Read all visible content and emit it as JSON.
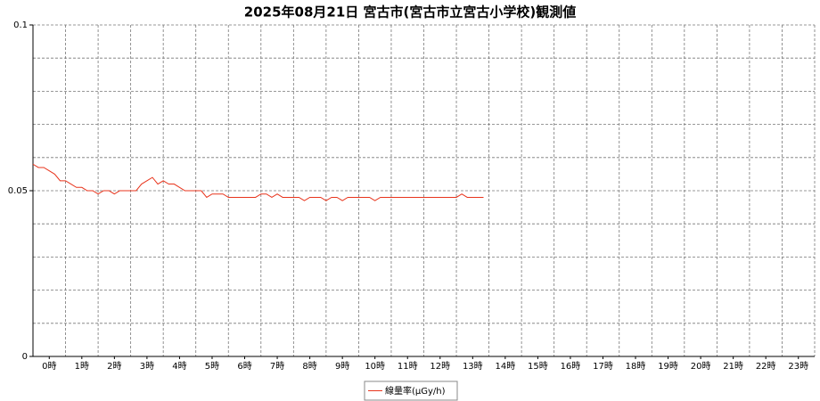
{
  "chart_data": {
    "type": "line",
    "title": "2025年08月21日 宮古市(宮古市立宮古小学校)観測値",
    "categories": [
      "0時",
      "1時",
      "2時",
      "3時",
      "4時",
      "5時",
      "6時",
      "7時",
      "8時",
      "9時",
      "10時",
      "11時",
      "12時",
      "13時",
      "14時",
      "15時",
      "16時",
      "17時",
      "18時",
      "19時",
      "20時",
      "21時",
      "22時",
      "23時"
    ],
    "x": [
      "00:00",
      "00:10",
      "00:20",
      "00:30",
      "00:40",
      "00:50",
      "01:00",
      "01:10",
      "01:20",
      "01:30",
      "01:40",
      "01:50",
      "02:00",
      "02:10",
      "02:20",
      "02:30",
      "02:40",
      "02:50",
      "03:00",
      "03:10",
      "03:20",
      "03:30",
      "03:40",
      "03:50",
      "04:00",
      "04:10",
      "04:20",
      "04:30",
      "04:40",
      "04:50",
      "05:00",
      "05:10",
      "05:20",
      "05:30",
      "05:40",
      "05:50",
      "06:00",
      "06:10",
      "06:20",
      "06:30",
      "06:40",
      "06:50",
      "07:00",
      "07:10",
      "07:20",
      "07:30",
      "07:40",
      "07:50",
      "08:00",
      "08:10",
      "08:20",
      "08:30",
      "08:40",
      "08:50",
      "09:00",
      "09:10",
      "09:20",
      "09:30",
      "09:40",
      "09:50",
      "10:00",
      "10:10",
      "10:20",
      "10:30",
      "10:40",
      "10:50",
      "11:00",
      "11:10",
      "11:20",
      "11:30",
      "11:40",
      "11:50",
      "12:00",
      "12:10",
      "12:20",
      "12:30",
      "12:40",
      "12:50",
      "13:00",
      "13:10",
      "13:20",
      "13:30",
      "13:40",
      "13:50"
    ],
    "series": [
      {
        "name": "線量率(μGy/h)",
        "color": "#e8341c",
        "values": [
          0.058,
          0.057,
          0.057,
          0.056,
          0.055,
          0.053,
          0.053,
          0.052,
          0.051,
          0.051,
          0.05,
          0.05,
          0.049,
          0.05,
          0.05,
          0.049,
          0.05,
          0.05,
          0.05,
          0.05,
          0.052,
          0.053,
          0.054,
          0.052,
          0.053,
          0.052,
          0.052,
          0.051,
          0.05,
          0.05,
          0.05,
          0.05,
          0.048,
          0.049,
          0.049,
          0.049,
          0.048,
          0.048,
          0.048,
          0.048,
          0.048,
          0.048,
          0.049,
          0.049,
          0.048,
          0.049,
          0.048,
          0.048,
          0.048,
          0.048,
          0.047,
          0.048,
          0.048,
          0.048,
          0.047,
          0.048,
          0.048,
          0.047,
          0.048,
          0.048,
          0.048,
          0.048,
          0.048,
          0.047,
          0.048,
          0.048,
          0.048,
          0.048,
          0.048,
          0.048,
          0.048,
          0.048,
          0.048,
          0.048,
          0.048,
          0.048,
          0.048,
          0.048,
          0.048,
          0.049,
          0.048,
          0.048,
          0.048,
          0.048
        ]
      }
    ],
    "ylim": [
      0,
      0.1
    ],
    "yticks": [
      0,
      0.05,
      0.1
    ],
    "ygrid": [
      0.01,
      0.02,
      0.03,
      0.04,
      0.05,
      0.06,
      0.07,
      0.08,
      0.09,
      0.1
    ],
    "grid": true,
    "legend": "bottom"
  }
}
